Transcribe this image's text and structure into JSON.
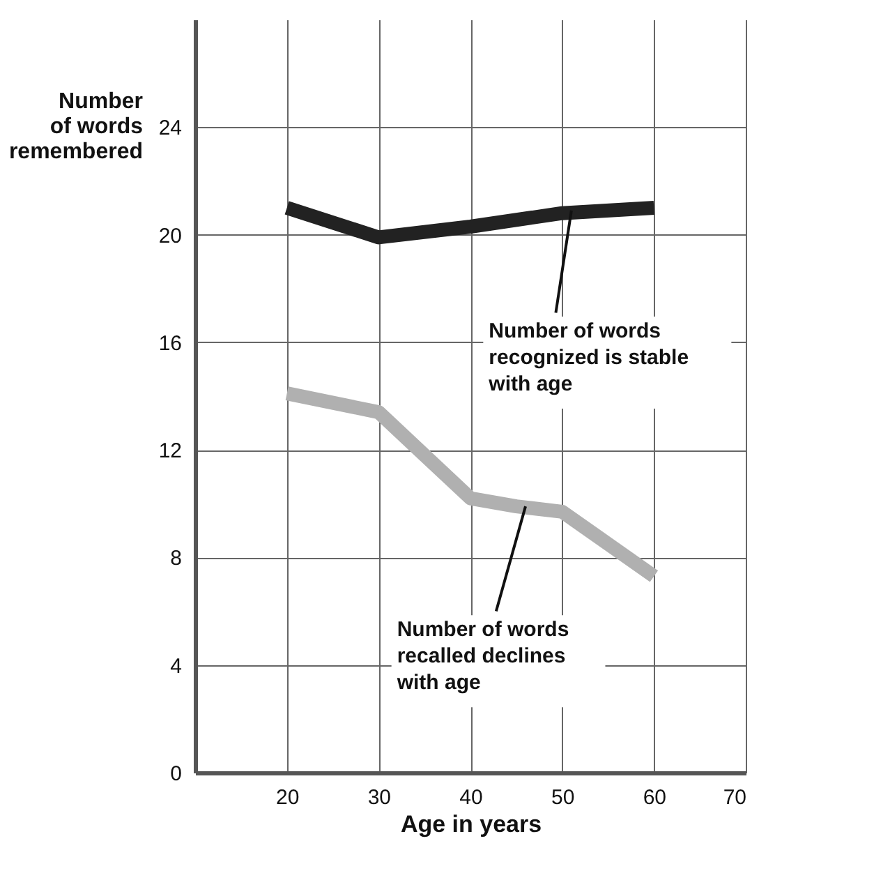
{
  "chart_data": {
    "type": "line",
    "xlabel": "Age in years",
    "ylabel": "Number\nof words\nremembered",
    "xlim": [
      10,
      70
    ],
    "xticks": [
      20,
      30,
      40,
      50,
      60,
      70
    ],
    "ylim": [
      0,
      28
    ],
    "yticks": [
      0,
      4,
      8,
      12,
      16,
      20,
      24
    ],
    "grid": true,
    "legend": false,
    "marker": "none",
    "line_style": "solid",
    "series": [
      {
        "color": "#222222",
        "x": [
          20,
          30,
          40,
          50,
          60
        ],
        "values": [
          21,
          19.9,
          20.3,
          20.8,
          21
        ]
      },
      {
        "color": "#b0b0b0",
        "x": [
          20,
          30,
          35,
          40,
          45,
          50,
          55,
          60
        ],
        "values": [
          14.1,
          13.4,
          11.8,
          10.2,
          9.9,
          9.7,
          8.5,
          7.3
        ]
      }
    ],
    "annotations": [
      {
        "text": "Number of words\nrecognized is stable\nwith age",
        "x": 51,
        "y": 20.9
      },
      {
        "text": "Number of words\nrecalled declines\nwith age",
        "x": 46,
        "y": 9.9
      }
    ]
  }
}
